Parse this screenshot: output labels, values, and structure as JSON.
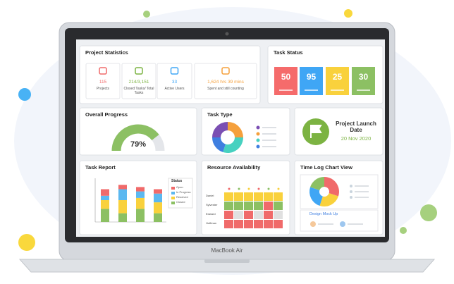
{
  "laptop_label": "MacBook Air",
  "project_statistics": {
    "title": "Project Statistics",
    "items": [
      {
        "value": "115",
        "label": "Projects",
        "color": "#f06a6a"
      },
      {
        "value": "214/3,151",
        "label": "Closed Tasks/ Total Tasks",
        "color": "#7cb342"
      },
      {
        "value": "33",
        "label": "Active Users",
        "color": "#3fa6f5"
      },
      {
        "value": "1,624 hrs 39 mins",
        "label": "Spent and still counting",
        "color": "#f5a03c"
      }
    ]
  },
  "task_status": {
    "title": "Task Status",
    "values": [
      "50",
      "95",
      "25",
      "30"
    ],
    "colors": [
      "#f56b6b",
      "#3fa6f5",
      "#f9d13c",
      "#8cc063"
    ]
  },
  "overall_progress": {
    "title": "Overall Progress",
    "value": 79,
    "value_label": "79%",
    "ylim": [
      0,
      100
    ],
    "color": "#8cc063"
  },
  "task_type": {
    "title": "Task Type",
    "values": [
      25,
      25,
      30,
      20
    ],
    "colors": [
      "#7b4fb3",
      "#f5a03c",
      "#47d1c0",
      "#3f7fe0"
    ]
  },
  "project_launch": {
    "title": "Project Launch Date",
    "date": "20 Nov 2020"
  },
  "task_report": {
    "title": "Task Report",
    "legend_title": "Status",
    "ylim": [
      0,
      10
    ],
    "series": [
      {
        "name": "Open",
        "color": "#f06a6a",
        "values": [
          1.5,
          1,
          1,
          1
        ]
      },
      {
        "name": "In Progress",
        "color": "#5bb8f0",
        "values": [
          1,
          2.5,
          1.5,
          2
        ]
      },
      {
        "name": "Resolved",
        "color": "#f9d13c",
        "values": [
          2,
          3,
          2.5,
          2.5
        ]
      },
      {
        "name": "Closed",
        "color": "#8cc063",
        "values": [
          3,
          2,
          3,
          2
        ]
      }
    ]
  },
  "resource_availability": {
    "title": "Resource Availability",
    "rows": [
      "Daniel",
      "Sylvester",
      "Edward",
      "Hoffman"
    ]
  },
  "time_log": {
    "title": "Time Log Chart View",
    "values": [
      30,
      25,
      25,
      20
    ],
    "colors": [
      "#f06a6a",
      "#f9d13c",
      "#3fa6f5",
      "#8cc063"
    ],
    "task": "Design Mock Up"
  }
}
